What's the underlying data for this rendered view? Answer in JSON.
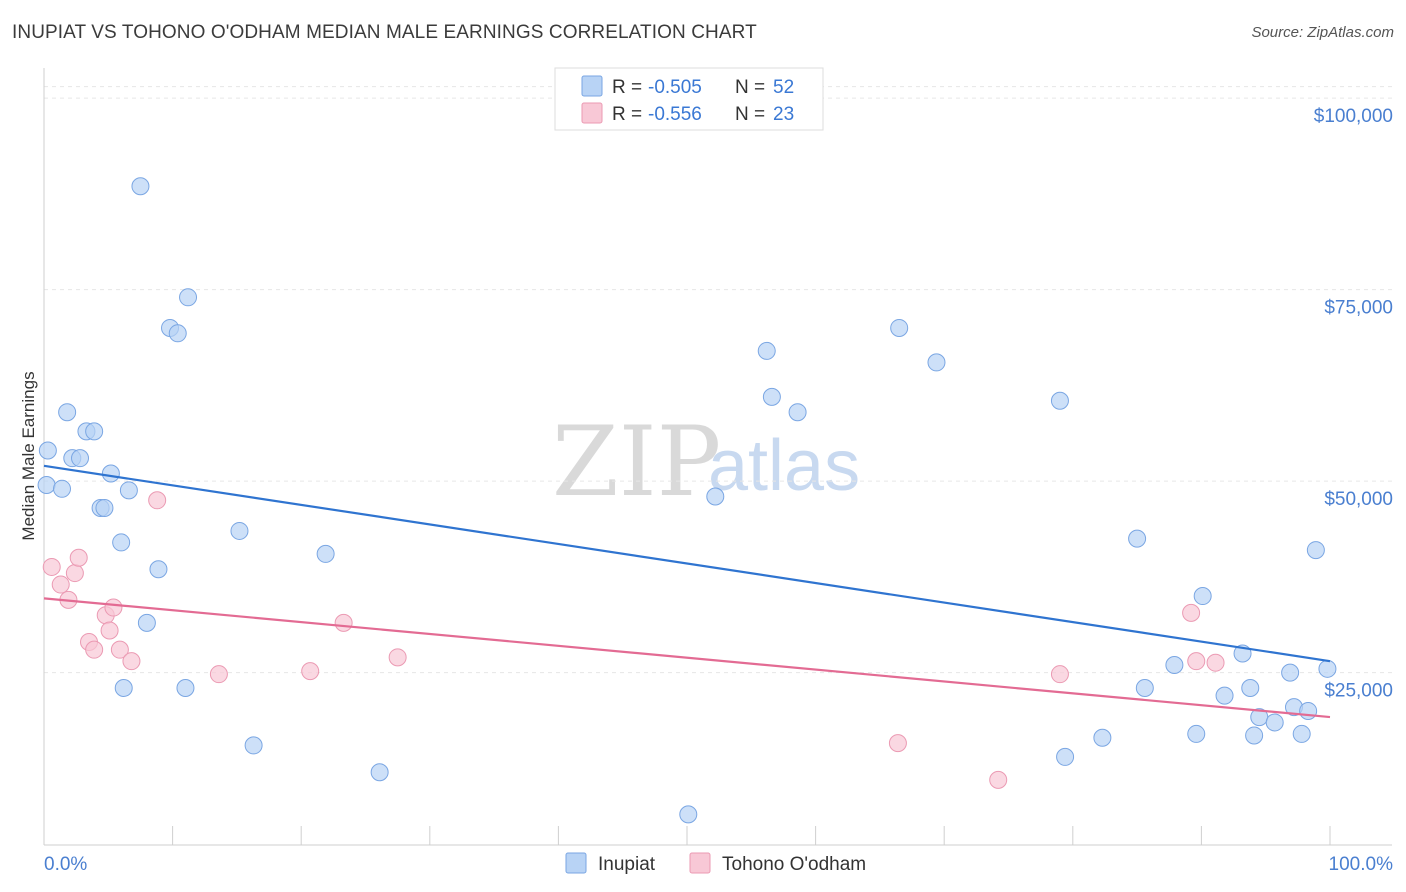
{
  "header": {
    "title": "INUPIAT VS TOHONO O'ODHAM MEDIAN MALE EARNINGS CORRELATION CHART",
    "source": "Source: ZipAtlas.com"
  },
  "watermark": {
    "zip": "ZIP",
    "atlas": "atlas"
  },
  "legend_top": [
    {
      "r_label": "R =",
      "r_value": "-0.505",
      "n_label": "N =",
      "n_value": "52",
      "color": "#b8d3f5",
      "stroke": "#7aa6e3"
    },
    {
      "r_label": "R =",
      "r_value": "-0.556",
      "n_label": "N =",
      "n_value": "23",
      "color": "#f8c8d6",
      "stroke": "#eb9ab3"
    }
  ],
  "legend_bottom": [
    {
      "label": "Inupiat",
      "color": "#b8d3f5",
      "stroke": "#7aa6e3"
    },
    {
      "label": "Tohono O'odham",
      "color": "#f8c8d6",
      "stroke": "#eb9ab3"
    }
  ],
  "chart_data": {
    "type": "scatter",
    "title": "INUPIAT VS TOHONO O'ODHAM MEDIAN MALE EARNINGS CORRELATION CHART",
    "ylabel": "Median Male Earnings",
    "xlim": [
      0,
      100
    ],
    "ylim": [
      2500,
      102500
    ],
    "x_tick_labels": [
      {
        "value": 0,
        "label": "0.0%"
      },
      {
        "value": 100,
        "label": "100.0%"
      }
    ],
    "y_ticks": [
      {
        "value": 25000,
        "label": "$25,000"
      },
      {
        "value": 50000,
        "label": "$50,000"
      },
      {
        "value": 75000,
        "label": "$75,000"
      },
      {
        "value": 100000,
        "label": "$100,000"
      }
    ],
    "grid": true,
    "series": [
      {
        "name": "Inupiat",
        "color": "#b8d3f5",
        "stroke": "#7aa6e3",
        "line_color": "#2f74d0",
        "trend": [
          [
            0,
            52000
          ],
          [
            100,
            26500
          ]
        ],
        "points": [
          [
            0.2,
            49500
          ],
          [
            0.3,
            54000
          ],
          [
            1.4,
            49000
          ],
          [
            1.8,
            59000
          ],
          [
            2.2,
            53000
          ],
          [
            2.8,
            53000
          ],
          [
            3.3,
            56500
          ],
          [
            3.9,
            56500
          ],
          [
            4.4,
            46500
          ],
          [
            4.7,
            46500
          ],
          [
            5.2,
            51000
          ],
          [
            6.0,
            42000
          ],
          [
            6.2,
            23000
          ],
          [
            6.6,
            48800
          ],
          [
            7.5,
            88500
          ],
          [
            8.0,
            31500
          ],
          [
            8.9,
            38500
          ],
          [
            9.8,
            70000
          ],
          [
            10.4,
            69300
          ],
          [
            11.0,
            23000
          ],
          [
            11.2,
            74000
          ],
          [
            15.2,
            43500
          ],
          [
            16.3,
            15500
          ],
          [
            21.9,
            40500
          ],
          [
            26.1,
            12000
          ],
          [
            50.1,
            6500
          ],
          [
            52.2,
            48000
          ],
          [
            56.2,
            67000
          ],
          [
            56.6,
            61000
          ],
          [
            58.6,
            59000
          ],
          [
            66.5,
            70000
          ],
          [
            69.4,
            65500
          ],
          [
            79.0,
            60500
          ],
          [
            79.4,
            14000
          ],
          [
            82.3,
            16500
          ],
          [
            85.0,
            42500
          ],
          [
            85.6,
            23000
          ],
          [
            87.9,
            26000
          ],
          [
            89.6,
            17000
          ],
          [
            90.1,
            35000
          ],
          [
            91.8,
            22000
          ],
          [
            93.2,
            27500
          ],
          [
            93.8,
            23000
          ],
          [
            94.1,
            16800
          ],
          [
            94.5,
            19200
          ],
          [
            95.7,
            18500
          ],
          [
            96.9,
            25000
          ],
          [
            97.2,
            20500
          ],
          [
            97.8,
            17000
          ],
          [
            98.3,
            20000
          ],
          [
            99.8,
            25500
          ],
          [
            98.9,
            41000
          ]
        ]
      },
      {
        "name": "Tohono O'odham",
        "color": "#f8c8d6",
        "stroke": "#eb9ab3",
        "line_color": "#e36b93",
        "trend": [
          [
            0,
            34700
          ],
          [
            100,
            19200
          ]
        ],
        "points": [
          [
            0.6,
            38800
          ],
          [
            1.3,
            36500
          ],
          [
            1.9,
            34500
          ],
          [
            2.4,
            38000
          ],
          [
            2.7,
            40000
          ],
          [
            3.5,
            29000
          ],
          [
            3.9,
            28000
          ],
          [
            4.8,
            32500
          ],
          [
            5.1,
            30500
          ],
          [
            5.4,
            33500
          ],
          [
            5.9,
            28000
          ],
          [
            6.8,
            26500
          ],
          [
            8.8,
            47500
          ],
          [
            13.6,
            24800
          ],
          [
            20.7,
            25200
          ],
          [
            23.3,
            31500
          ],
          [
            27.5,
            27000
          ],
          [
            66.4,
            15800
          ],
          [
            74.2,
            11000
          ],
          [
            79.0,
            24800
          ],
          [
            89.2,
            32800
          ],
          [
            89.6,
            26500
          ],
          [
            91.1,
            26300
          ]
        ]
      }
    ]
  }
}
